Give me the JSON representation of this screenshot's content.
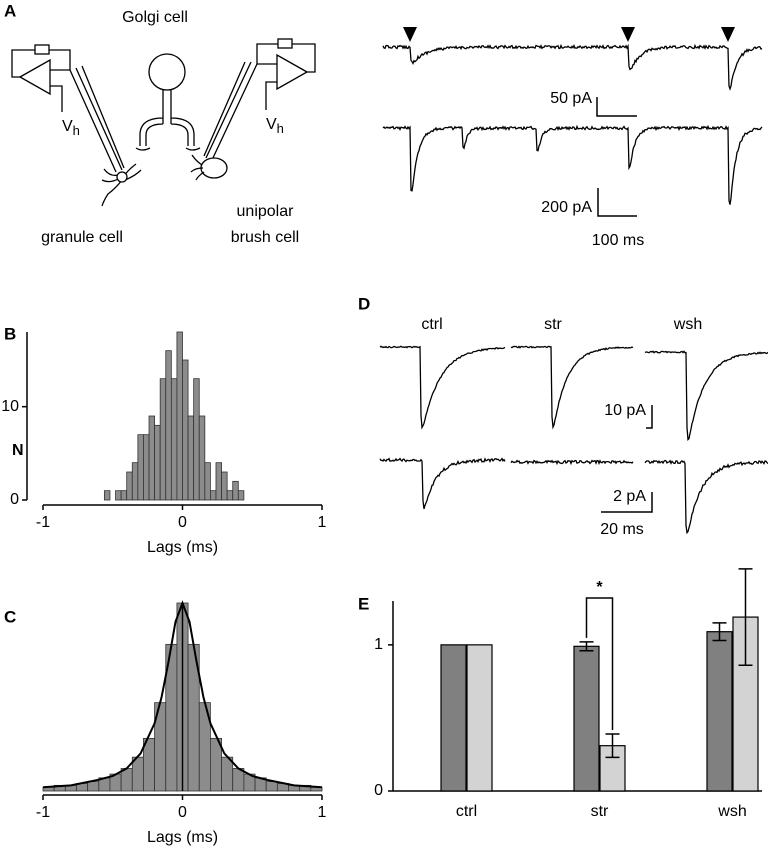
{
  "figure": {
    "panel_labels": [
      "A",
      "B",
      "C",
      "D",
      "E"
    ],
    "panel_a": {
      "cells": [
        "Golgi cell",
        "granule cell",
        "unipolar",
        "brush cell"
      ],
      "holding_potential": {
        "main": "V",
        "sub": "h"
      },
      "scale_bars": [
        "50 pA",
        "200 pA",
        "100 ms"
      ]
    },
    "panel_d": {
      "conditions": [
        "ctrl",
        "str",
        "wsh"
      ],
      "scale_bars": [
        "10 pA",
        "2 pA",
        "20 ms"
      ]
    }
  },
  "chart_data": [
    {
      "type": "histogram",
      "x_label": "Lags (ms)",
      "y_label": "N",
      "bins": [
        -0.56,
        -0.52,
        -0.48,
        -0.44,
        -0.4,
        -0.36,
        -0.32,
        -0.28,
        -0.24,
        -0.2,
        -0.16,
        -0.12,
        -0.08,
        -0.04,
        0,
        0.04,
        0.08,
        0.12,
        0.16,
        0.2,
        0.24,
        0.28,
        0.32,
        0.36,
        0.4,
        0.44
      ],
      "values": [
        1,
        0,
        1,
        1,
        3,
        4,
        7,
        7,
        9,
        8,
        13,
        16,
        13,
        18,
        15,
        9,
        13,
        9,
        4,
        1,
        4,
        3,
        1,
        2,
        1
      ],
      "color": "#8c8c8c",
      "xlim": [
        -1,
        1
      ],
      "xticks": [
        -1,
        0,
        1
      ],
      "ylim": [
        0,
        18
      ],
      "yticks": [
        0,
        10
      ]
    },
    {
      "type": "histogram",
      "x_label": "Lags (ms)",
      "bins": [
        -1,
        -0.92,
        -0.84,
        -0.76,
        -0.68,
        -0.6,
        -0.52,
        -0.44,
        -0.36,
        -0.28,
        -0.2,
        -0.12,
        -0.04,
        0.04,
        0.12,
        0.2,
        0.28,
        0.36,
        0.44,
        0.52,
        0.6,
        0.68,
        0.76,
        0.84,
        0.92,
        1
      ],
      "values": [
        0.02,
        0.03,
        0.03,
        0.04,
        0.05,
        0.07,
        0.09,
        0.12,
        0.18,
        0.28,
        0.47,
        0.78,
        1,
        0.78,
        0.47,
        0.28,
        0.18,
        0.12,
        0.09,
        0.07,
        0.05,
        0.04,
        0.03,
        0.03,
        0.02
      ],
      "color": "#8c8c8c",
      "fit": {
        "x": [
          -1,
          -0.8,
          -0.6,
          -0.5,
          -0.4,
          -0.3,
          -0.2,
          -0.15,
          -0.1,
          -0.05,
          0,
          0.05,
          0.1,
          0.15,
          0.2,
          0.3,
          0.4,
          0.5,
          0.6,
          0.8,
          1
        ],
        "y": [
          0.02,
          0.03,
          0.06,
          0.08,
          0.12,
          0.2,
          0.36,
          0.5,
          0.69,
          0.9,
          1,
          0.9,
          0.69,
          0.5,
          0.36,
          0.2,
          0.12,
          0.08,
          0.06,
          0.03,
          0.02
        ],
        "color": "#000000"
      },
      "xlim": [
        -1,
        1
      ],
      "xticks": [
        -1,
        0,
        1
      ],
      "ylim": [
        0,
        1
      ]
    },
    {
      "type": "bar",
      "categories": [
        "ctrl",
        "str",
        "wsh"
      ],
      "series": [
        {
          "color": "#808080",
          "values": [
            1,
            0.99,
            1.09
          ],
          "errors": [
            null,
            0.03,
            0.06
          ]
        },
        {
          "color": "#d3d3d3",
          "values": [
            1,
            0.31,
            1.19
          ],
          "errors": [
            null,
            0.08,
            0.33
          ]
        }
      ],
      "ylim": [
        0,
        1.3
      ],
      "yticks": [
        0,
        1
      ],
      "annotation": "*"
    }
  ]
}
